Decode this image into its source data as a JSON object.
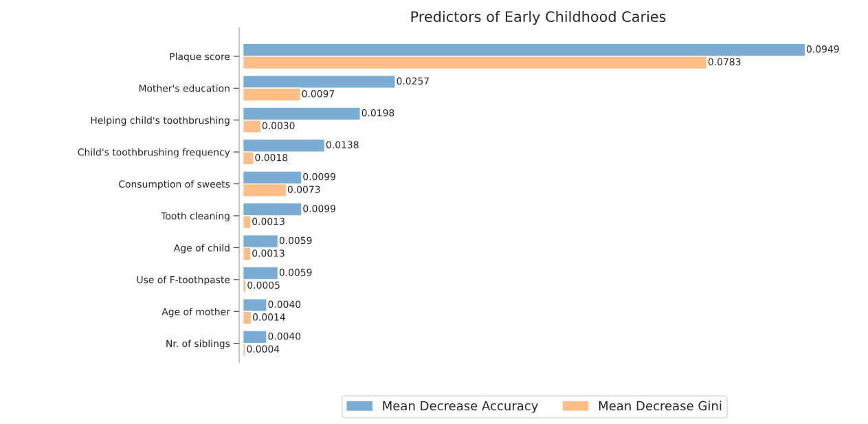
{
  "chart_data": {
    "type": "bar",
    "orientation": "horizontal",
    "title": "Predictors of Early Childhood Caries",
    "categories": [
      "Plaque score",
      "Mother's education",
      "Helping child's toothbrushing",
      "Child's toothbrushing frequency",
      "Consumption of sweets",
      "Tooth cleaning",
      "Age of child",
      "Use of F-toothpaste",
      "Age of mother",
      "Nr. of siblings"
    ],
    "series": [
      {
        "name": "Mean Decrease Accuracy",
        "color": "#7aadd3",
        "values": [
          0.0949,
          0.0257,
          0.0198,
          0.0138,
          0.0099,
          0.0099,
          0.0059,
          0.0059,
          0.004,
          0.004
        ],
        "value_labels": [
          "0.0949",
          "0.0257",
          "0.0198",
          "0.0138",
          "0.0099",
          "0.0099",
          "0.0059",
          "0.0059",
          "0.0040",
          "0.0040"
        ]
      },
      {
        "name": "Mean Decrease Gini",
        "color": "#ffbe86",
        "values": [
          0.0783,
          0.0097,
          0.003,
          0.0018,
          0.0073,
          0.0013,
          0.0013,
          0.0005,
          0.0014,
          0.0004
        ],
        "value_labels": [
          "0.0783",
          "0.0097",
          "0.0030",
          "0.0018",
          "0.0073",
          "0.0013",
          "0.0013",
          "0.0005",
          "0.0014",
          "0.0004"
        ]
      }
    ],
    "tick_labels": "y",
    "grid": false,
    "legend": "bottom"
  }
}
